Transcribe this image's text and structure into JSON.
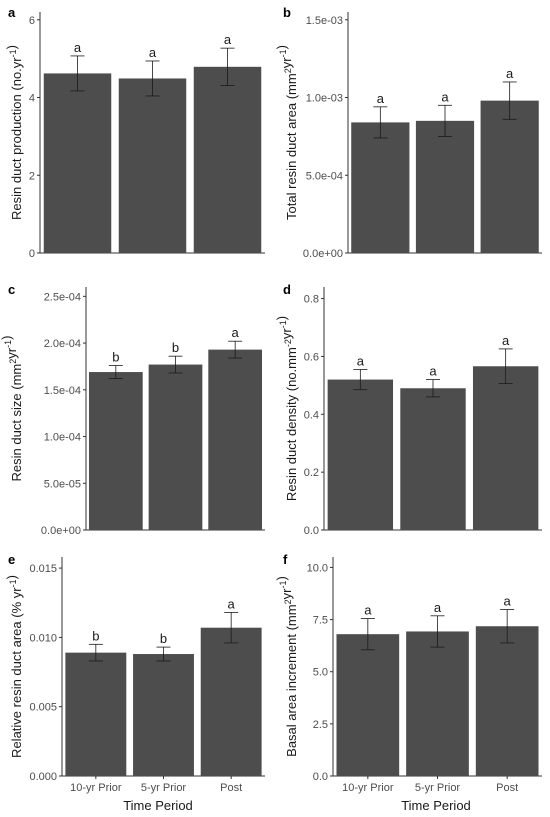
{
  "figure": {
    "x_axis_title": "Time Period",
    "categories": [
      "10-yr Prior",
      "5-yr Prior",
      "Post"
    ]
  },
  "chart_data": [
    {
      "panel": "a",
      "type": "bar",
      "ylabel_parts": [
        {
          "t": "Resin duct production (no.yr"
        },
        {
          "t": "-1",
          "sup": true
        },
        {
          "t": ")"
        }
      ],
      "ylim": [
        0,
        6.2
      ],
      "ticks": [
        0,
        2,
        4,
        6
      ],
      "tick_labels": [
        "0",
        "2",
        "4",
        "6"
      ],
      "values": [
        4.62,
        4.49,
        4.79
      ],
      "errors": [
        0.45,
        0.45,
        0.48
      ],
      "sig": [
        "a",
        "a",
        "a"
      ]
    },
    {
      "panel": "b",
      "type": "bar",
      "ylabel_parts": [
        {
          "t": "Total resin duct area (mm"
        },
        {
          "t": "2",
          "sup": true
        },
        {
          "t": "yr"
        },
        {
          "t": "-1",
          "sup": true
        },
        {
          "t": ")"
        }
      ],
      "ylim": [
        0,
        0.00155
      ],
      "ticks": [
        0,
        0.0005,
        0.001,
        0.0015
      ],
      "tick_labels": [
        "0.0e+00",
        "5.0e-04",
        "1.0e-03",
        "1.5e-03"
      ],
      "values": [
        0.00084,
        0.00085,
        0.00098
      ],
      "errors": [
        0.0001,
        0.0001,
        0.00012
      ],
      "sig": [
        "a",
        "a",
        "a"
      ]
    },
    {
      "panel": "c",
      "type": "bar",
      "ylabel_parts": [
        {
          "t": "Resin duct size (mm"
        },
        {
          "t": "2",
          "sup": true
        },
        {
          "t": "yr"
        },
        {
          "t": "-1",
          "sup": true
        },
        {
          "t": ")"
        }
      ],
      "ylim": [
        0,
        0.00026
      ],
      "ticks": [
        0,
        5e-05,
        0.0001,
        0.00015,
        0.0002,
        0.00025
      ],
      "tick_labels": [
        "0.0e+00",
        "5.0e-05",
        "1.0e-04",
        "1.5e-04",
        "2.0e-04",
        "2.5e-04"
      ],
      "values": [
        0.000169,
        0.000177,
        0.000193
      ],
      "errors": [
        7e-06,
        9e-06,
        9e-06
      ],
      "sig": [
        "b",
        "b",
        "a"
      ]
    },
    {
      "panel": "d",
      "type": "bar",
      "ylabel_parts": [
        {
          "t": "Resin duct density (no.mm"
        },
        {
          "t": "-2",
          "sup": true
        },
        {
          "t": "yr"
        },
        {
          "t": "-1",
          "sup": true
        },
        {
          "t": ")"
        }
      ],
      "ylim": [
        0,
        0.84
      ],
      "ticks": [
        0,
        0.2,
        0.4,
        0.6,
        0.8
      ],
      "tick_labels": [
        "0.0",
        "0.2",
        "0.4",
        "0.6",
        "0.8"
      ],
      "values": [
        0.52,
        0.49,
        0.566
      ],
      "errors": [
        0.035,
        0.03,
        0.06
      ],
      "sig": [
        "a",
        "a",
        "a"
      ]
    },
    {
      "panel": "e",
      "type": "bar",
      "ylabel_parts": [
        {
          "t": "Relative resin duct area (% yr"
        },
        {
          "t": "-1",
          "sup": true
        },
        {
          "t": ")"
        }
      ],
      "ylim": [
        0,
        0.0158
      ],
      "ticks": [
        0,
        0.005,
        0.01,
        0.015
      ],
      "tick_labels": [
        "0.000",
        "0.005",
        "0.010",
        "0.015"
      ],
      "values": [
        0.0089,
        0.0088,
        0.0107
      ],
      "errors": [
        0.0006,
        0.0005,
        0.0011
      ],
      "sig": [
        "b",
        "b",
        "a"
      ]
    },
    {
      "panel": "f",
      "type": "bar",
      "ylabel_parts": [
        {
          "t": "Basal area increment (mm"
        },
        {
          "t": "2",
          "sup": true
        },
        {
          "t": "yr"
        },
        {
          "t": "-1",
          "sup": true
        },
        {
          "t": ")"
        }
      ],
      "ylim": [
        0,
        10.5
      ],
      "ticks": [
        0,
        2.5,
        5,
        7.5,
        10
      ],
      "tick_labels": [
        "0.0",
        "2.5",
        "5.0",
        "7.5",
        "10.0"
      ],
      "values": [
        6.8,
        6.93,
        7.18
      ],
      "errors": [
        0.75,
        0.75,
        0.8
      ],
      "sig": [
        "a",
        "a",
        "a"
      ]
    }
  ]
}
